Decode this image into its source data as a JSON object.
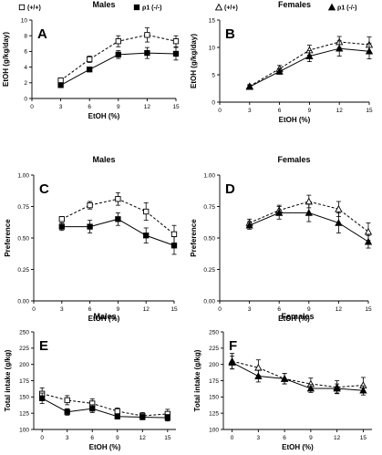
{
  "legend_labels": {
    "wt": "(+/+)",
    "ko": "ρ1 (-/-)"
  },
  "chart_data": [
    {
      "type": "line",
      "panel": "A",
      "title": "Males",
      "xlabel": "EtOH (%)",
      "ylabel": "EtOH (g/kg/day)",
      "xlim": [
        0,
        15
      ],
      "ylim": [
        0,
        10
      ],
      "xticks": [
        0,
        3,
        6,
        9,
        12,
        15
      ],
      "yticks": [
        0,
        2,
        4,
        6,
        8,
        10
      ],
      "tick_labels": [
        "0",
        "3",
        "6",
        "9",
        "12",
        "15"
      ],
      "ytick_labels": [
        "0",
        "2",
        "4",
        "6",
        "8",
        "10"
      ],
      "x": [
        3,
        6,
        9,
        12,
        15
      ],
      "series": [
        {
          "name": "(+/+)",
          "marker": "square-open",
          "dashed": true,
          "values": [
            2.3,
            5.0,
            7.3,
            8.1,
            7.3
          ],
          "err": [
            0.3,
            0.4,
            0.7,
            0.9,
            0.7
          ]
        },
        {
          "name": "ρ1 (-/-)",
          "marker": "square-filled",
          "dashed": false,
          "values": [
            1.7,
            3.7,
            5.6,
            5.8,
            5.7
          ],
          "err": [
            0.2,
            0.3,
            0.5,
            0.7,
            0.8
          ]
        }
      ]
    },
    {
      "type": "line",
      "panel": "B",
      "title": "Females",
      "xlabel": "EtOH (%)",
      "ylabel": "EtOH (g/kg/day)",
      "xlim": [
        0,
        15
      ],
      "ylim": [
        0,
        15
      ],
      "xticks": [
        0,
        3,
        6,
        9,
        12,
        15
      ],
      "yticks": [
        0,
        5,
        10,
        15
      ],
      "tick_labels": [
        "0",
        "3",
        "6",
        "9",
        "12",
        "15"
      ],
      "ytick_labels": [
        "0",
        "5",
        "10",
        "15"
      ],
      "x": [
        3,
        6,
        9,
        12,
        15
      ],
      "series": [
        {
          "name": "(+/+)",
          "marker": "triangle-open",
          "dashed": true,
          "values": [
            2.9,
            6.1,
            9.5,
            11.0,
            10.5
          ],
          "err": [
            0.3,
            0.6,
            0.9,
            1.0,
            1.4
          ]
        },
        {
          "name": "ρ1 (-/-)",
          "marker": "triangle-filled",
          "dashed": false,
          "values": [
            2.8,
            5.6,
            8.4,
            9.8,
            9.3
          ],
          "err": [
            0.3,
            0.5,
            1.0,
            1.4,
            1.4
          ]
        }
      ]
    },
    {
      "type": "line",
      "panel": "C",
      "title": "Males",
      "xlabel": "EtOH (%)",
      "ylabel": "Preference",
      "xlim": [
        0,
        15
      ],
      "ylim": [
        0,
        1
      ],
      "xticks": [
        0,
        3,
        6,
        9,
        12,
        15
      ],
      "yticks": [
        0,
        0.25,
        0.5,
        0.75,
        1.0
      ],
      "tick_labels": [
        "0",
        "3",
        "6",
        "9",
        "12",
        "15"
      ],
      "ytick_labels": [
        "0.00",
        "0.25",
        "0.50",
        "0.75",
        "1.00"
      ],
      "x": [
        3,
        6,
        9,
        12,
        15
      ],
      "series": [
        {
          "name": "(+/+)",
          "marker": "square-open",
          "dashed": true,
          "values": [
            0.65,
            0.76,
            0.81,
            0.71,
            0.53
          ],
          "err": [
            0.02,
            0.03,
            0.05,
            0.07,
            0.07
          ]
        },
        {
          "name": "ρ1 (-/-)",
          "marker": "square-filled",
          "dashed": false,
          "values": [
            0.59,
            0.59,
            0.65,
            0.52,
            0.44
          ],
          "err": [
            0.03,
            0.05,
            0.05,
            0.06,
            0.07
          ]
        }
      ]
    },
    {
      "type": "line",
      "panel": "D",
      "title": "Females",
      "xlabel": "EtOH (%)",
      "ylabel": "Preference",
      "xlim": [
        0,
        15
      ],
      "ylim": [
        0,
        1
      ],
      "xticks": [
        0,
        3,
        6,
        9,
        12,
        15
      ],
      "yticks": [
        0,
        0.25,
        0.5,
        0.75,
        1.0
      ],
      "tick_labels": [
        "0",
        "3",
        "6",
        "9",
        "12",
        "15"
      ],
      "ytick_labels": [
        "0.00",
        "0.25",
        "0.50",
        "0.75",
        "1.00"
      ],
      "x": [
        3,
        6,
        9,
        12,
        15
      ],
      "series": [
        {
          "name": "(+/+)",
          "marker": "triangle-open",
          "dashed": true,
          "values": [
            0.62,
            0.72,
            0.79,
            0.73,
            0.55
          ],
          "err": [
            0.03,
            0.04,
            0.05,
            0.06,
            0.07
          ]
        },
        {
          "name": "ρ1 (-/-)",
          "marker": "triangle-filled",
          "dashed": false,
          "values": [
            0.6,
            0.7,
            0.7,
            0.62,
            0.47
          ],
          "err": [
            0.03,
            0.05,
            0.07,
            0.08,
            0.05
          ]
        }
      ]
    },
    {
      "type": "line",
      "panel": "E",
      "title": "Males",
      "xlabel": "EtOH (%)",
      "ylabel": "Total intake (g/kg)",
      "xlim": [
        -1,
        16
      ],
      "ylim": [
        100,
        250
      ],
      "xticks": [
        0,
        3,
        6,
        9,
        12,
        15
      ],
      "yticks": [
        100,
        125,
        150,
        175,
        200,
        225,
        250
      ],
      "tick_labels": [
        "0",
        "3",
        "6",
        "9",
        "12",
        "15"
      ],
      "ytick_labels": [
        "100",
        "125",
        "150",
        "175",
        "200",
        "225",
        "250"
      ],
      "x": [
        0,
        3,
        6,
        9,
        12,
        15
      ],
      "series": [
        {
          "name": "(+/+)",
          "marker": "square-open",
          "dashed": true,
          "values": [
            155,
            145,
            140,
            128,
            121,
            124
          ],
          "err": [
            9,
            7,
            7,
            5,
            5,
            7
          ]
        },
        {
          "name": "ρ1 (-/-)",
          "marker": "square-filled",
          "dashed": false,
          "values": [
            148,
            127,
            132,
            120,
            119,
            118
          ],
          "err": [
            8,
            5,
            6,
            4,
            4,
            5
          ]
        }
      ]
    },
    {
      "type": "line",
      "panel": "F",
      "title": "Females",
      "xlabel": "EtOH (%)",
      "ylabel": "Total intake (g/kg)",
      "xlim": [
        -1,
        16
      ],
      "ylim": [
        100,
        250
      ],
      "xticks": [
        0,
        3,
        6,
        9,
        12,
        15
      ],
      "yticks": [
        100,
        125,
        150,
        175,
        200,
        225,
        250
      ],
      "tick_labels": [
        "0",
        "3",
        "6",
        "9",
        "12",
        "15"
      ],
      "ytick_labels": [
        "100",
        "125",
        "150",
        "175",
        "200",
        "225",
        "250"
      ],
      "x": [
        0,
        3,
        6,
        9,
        12,
        15
      ],
      "series": [
        {
          "name": "(+/+)",
          "marker": "triangle-open",
          "dashed": true,
          "values": [
            205,
            195,
            178,
            170,
            165,
            168
          ],
          "err": [
            12,
            12,
            8,
            9,
            10,
            12
          ]
        },
        {
          "name": "ρ1 (-/-)",
          "marker": "triangle-filled",
          "dashed": false,
          "values": [
            203,
            182,
            178,
            163,
            163,
            160
          ],
          "err": [
            10,
            9,
            8,
            6,
            7,
            7
          ]
        }
      ]
    }
  ]
}
